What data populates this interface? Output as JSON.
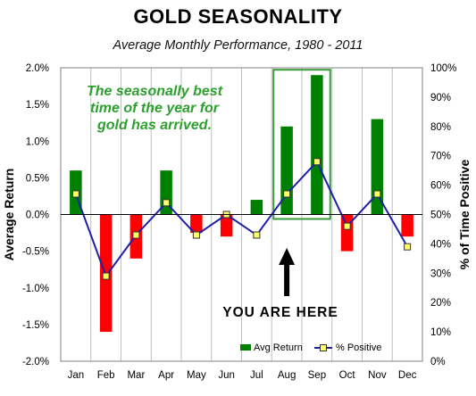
{
  "chart_data": {
    "type": "bar",
    "title": "GOLD SEASONALITY",
    "subtitle": "Average Monthly Performance, 1980 - 2011",
    "categories": [
      "Jan",
      "Feb",
      "Mar",
      "Apr",
      "May",
      "Jun",
      "Jul",
      "Aug",
      "Sep",
      "Oct",
      "Nov",
      "Dec"
    ],
    "series": [
      {
        "name": "Avg Return",
        "axis": "left",
        "chart_type": "bar",
        "values": [
          0.6,
          -1.6,
          -0.6,
          0.6,
          -0.25,
          -0.3,
          0.2,
          1.2,
          1.9,
          -0.5,
          1.3,
          -0.3
        ],
        "positive_color": "#008000",
        "negative_color": "#ff0000"
      },
      {
        "name": "% Positive",
        "axis": "right",
        "chart_type": "line",
        "values": [
          57,
          29,
          43,
          54,
          43,
          50,
          43,
          57,
          68,
          46,
          57,
          39
        ],
        "line_color": "#1f1fa8",
        "marker_color": "#ffff66"
      }
    ],
    "ylabel_left": "Average Return",
    "ylabel_right": "% of Time Positive",
    "ylim_left": [
      -2.0,
      2.0
    ],
    "ylim_right": [
      0,
      100
    ],
    "left_ticks": [
      "2.0%",
      "1.5%",
      "1.0%",
      "0.5%",
      "0.0%",
      "-0.5%",
      "-1.0%",
      "-1.5%",
      "-2.0%"
    ],
    "right_ticks": [
      "100%",
      "90%",
      "80%",
      "70%",
      "60%",
      "50%",
      "40%",
      "30%",
      "20%",
      "10%",
      "0%"
    ],
    "grid": "vertical",
    "legend_position": "bottom-right",
    "annotations": {
      "green_text": [
        "The seasonally best",
        "time of the year for",
        "gold  has  arrived."
      ],
      "highlight_text": "YOU ARE HERE",
      "highlight_months": [
        "Aug",
        "Sep"
      ]
    }
  }
}
